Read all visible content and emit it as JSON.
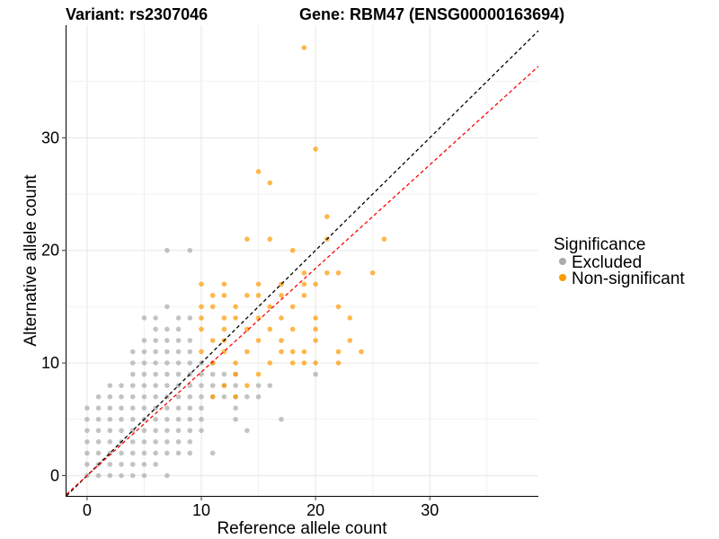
{
  "chart_data": {
    "type": "scatter",
    "title_left": "Variant: rs2307046",
    "title_right": "Gene: RBM47 (ENSG00000163694)",
    "xlabel": "Reference allele count",
    "ylabel": "Alternative allele count",
    "xlim": [
      -1.8,
      39.5
    ],
    "ylim": [
      -1.8,
      40.0
    ],
    "x_ticks": [
      0,
      10,
      20,
      30
    ],
    "y_ticks": [
      0,
      10,
      20,
      30
    ],
    "grid": true,
    "legend": {
      "title": "Significance",
      "position": "right",
      "entries": [
        {
          "label": "Excluded",
          "color": "#aaaaaa"
        },
        {
          "label": "Non-significant",
          "color": "#ff9900"
        }
      ]
    },
    "reference_lines": [
      {
        "slope": 1,
        "intercept": 0,
        "color": "#000000",
        "style": "dashed"
      },
      {
        "slope": 0.92,
        "intercept": 0,
        "color": "#ff0000",
        "style": "dashed"
      }
    ],
    "series": [
      {
        "name": "Excluded",
        "color": "#aaaaaa",
        "points": [
          [
            0,
            0
          ],
          [
            1,
            0
          ],
          [
            2,
            0
          ],
          [
            3,
            0
          ],
          [
            4,
            0
          ],
          [
            5,
            0
          ],
          [
            7,
            0
          ],
          [
            0,
            1
          ],
          [
            1,
            1
          ],
          [
            2,
            1
          ],
          [
            3,
            1
          ],
          [
            4,
            1
          ],
          [
            5,
            1
          ],
          [
            6,
            1
          ],
          [
            0,
            2
          ],
          [
            1,
            2
          ],
          [
            2,
            2
          ],
          [
            3,
            2
          ],
          [
            4,
            2
          ],
          [
            5,
            2
          ],
          [
            6,
            2
          ],
          [
            7,
            2
          ],
          [
            8,
            2
          ],
          [
            9,
            2
          ],
          [
            11,
            2
          ],
          [
            0,
            3
          ],
          [
            1,
            3
          ],
          [
            2,
            3
          ],
          [
            3,
            3
          ],
          [
            4,
            3
          ],
          [
            5,
            3
          ],
          [
            6,
            3
          ],
          [
            7,
            3
          ],
          [
            8,
            3
          ],
          [
            9,
            3
          ],
          [
            0,
            4
          ],
          [
            1,
            4
          ],
          [
            2,
            4
          ],
          [
            3,
            4
          ],
          [
            4,
            4
          ],
          [
            5,
            4
          ],
          [
            6,
            4
          ],
          [
            7,
            4
          ],
          [
            8,
            4
          ],
          [
            9,
            4
          ],
          [
            10,
            4
          ],
          [
            14,
            4
          ],
          [
            0,
            5
          ],
          [
            1,
            5
          ],
          [
            2,
            5
          ],
          [
            3,
            5
          ],
          [
            4,
            5
          ],
          [
            5,
            5
          ],
          [
            6,
            5
          ],
          [
            7,
            5
          ],
          [
            8,
            5
          ],
          [
            9,
            5
          ],
          [
            10,
            5
          ],
          [
            13,
            5
          ],
          [
            17,
            5
          ],
          [
            0,
            6
          ],
          [
            1,
            6
          ],
          [
            2,
            6
          ],
          [
            3,
            6
          ],
          [
            4,
            6
          ],
          [
            5,
            6
          ],
          [
            6,
            6
          ],
          [
            7,
            6
          ],
          [
            8,
            6
          ],
          [
            9,
            6
          ],
          [
            10,
            6
          ],
          [
            13,
            6
          ],
          [
            1,
            7
          ],
          [
            2,
            7
          ],
          [
            3,
            7
          ],
          [
            4,
            7
          ],
          [
            5,
            7
          ],
          [
            6,
            7
          ],
          [
            7,
            7
          ],
          [
            8,
            7
          ],
          [
            9,
            7
          ],
          [
            10,
            7
          ],
          [
            11,
            7
          ],
          [
            12,
            7
          ],
          [
            13,
            7
          ],
          [
            14,
            7
          ],
          [
            15,
            7
          ],
          [
            2,
            8
          ],
          [
            3,
            8
          ],
          [
            4,
            8
          ],
          [
            5,
            8
          ],
          [
            6,
            8
          ],
          [
            7,
            8
          ],
          [
            8,
            8
          ],
          [
            9,
            8
          ],
          [
            10,
            8
          ],
          [
            11,
            8
          ],
          [
            12,
            8
          ],
          [
            13,
            8
          ],
          [
            15,
            8
          ],
          [
            16,
            8
          ],
          [
            4,
            9
          ],
          [
            5,
            9
          ],
          [
            6,
            9
          ],
          [
            7,
            9
          ],
          [
            8,
            9
          ],
          [
            9,
            9
          ],
          [
            10,
            9
          ],
          [
            11,
            9
          ],
          [
            12,
            9
          ],
          [
            13,
            9
          ],
          [
            20,
            9
          ],
          [
            4,
            10
          ],
          [
            5,
            10
          ],
          [
            6,
            10
          ],
          [
            7,
            10
          ],
          [
            8,
            10
          ],
          [
            9,
            10
          ],
          [
            10,
            10
          ],
          [
            11,
            10
          ],
          [
            4,
            11
          ],
          [
            5,
            11
          ],
          [
            6,
            11
          ],
          [
            7,
            11
          ],
          [
            8,
            11
          ],
          [
            9,
            11
          ],
          [
            5,
            12
          ],
          [
            6,
            12
          ],
          [
            7,
            12
          ],
          [
            8,
            12
          ],
          [
            9,
            12
          ],
          [
            6,
            13
          ],
          [
            7,
            13
          ],
          [
            8,
            13
          ],
          [
            5,
            14
          ],
          [
            6,
            14
          ],
          [
            8,
            14
          ],
          [
            9,
            14
          ],
          [
            7,
            15
          ],
          [
            7,
            20
          ],
          [
            9,
            20
          ]
        ]
      },
      {
        "name": "Non-significant",
        "color": "#ff9900",
        "points": [
          [
            19,
            38
          ],
          [
            20,
            29
          ],
          [
            15,
            27
          ],
          [
            16,
            26
          ],
          [
            21,
            23
          ],
          [
            14,
            21
          ],
          [
            16,
            21
          ],
          [
            26,
            21
          ],
          [
            18,
            20
          ],
          [
            19,
            18
          ],
          [
            21,
            18
          ],
          [
            22,
            18
          ],
          [
            25,
            18
          ],
          [
            10,
            17
          ],
          [
            12,
            17
          ],
          [
            15,
            17
          ],
          [
            20,
            17
          ],
          [
            11,
            16
          ],
          [
            12,
            16
          ],
          [
            14,
            16
          ],
          [
            17,
            16
          ],
          [
            19,
            16
          ],
          [
            10,
            15
          ],
          [
            11,
            15
          ],
          [
            13,
            15
          ],
          [
            18,
            15
          ],
          [
            10,
            14
          ],
          [
            12,
            14
          ],
          [
            13,
            14
          ],
          [
            15,
            14
          ],
          [
            17,
            14
          ],
          [
            20,
            14
          ],
          [
            10,
            13
          ],
          [
            12,
            13
          ],
          [
            14,
            13
          ],
          [
            16,
            13
          ],
          [
            18,
            13
          ],
          [
            20,
            13
          ],
          [
            11,
            12
          ],
          [
            12,
            12
          ],
          [
            15,
            12
          ],
          [
            17,
            12
          ],
          [
            20,
            12
          ],
          [
            23,
            12
          ],
          [
            10,
            11
          ],
          [
            12,
            11
          ],
          [
            14,
            11
          ],
          [
            17,
            11
          ],
          [
            19,
            11
          ],
          [
            22,
            11
          ],
          [
            11,
            10
          ],
          [
            13,
            10
          ],
          [
            16,
            10
          ],
          [
            18,
            10
          ],
          [
            19,
            10
          ],
          [
            20,
            10
          ],
          [
            22,
            10
          ],
          [
            13,
            9
          ],
          [
            15,
            9
          ],
          [
            12,
            8
          ],
          [
            14,
            8
          ],
          [
            11,
            7
          ],
          [
            13,
            7
          ],
          [
            21,
            21
          ],
          [
            16,
            15
          ],
          [
            15,
            16
          ],
          [
            17,
            17
          ],
          [
            19,
            17
          ],
          [
            22,
            15
          ],
          [
            24,
            11
          ],
          [
            23,
            14
          ],
          [
            18,
            11
          ]
        ]
      }
    ]
  }
}
